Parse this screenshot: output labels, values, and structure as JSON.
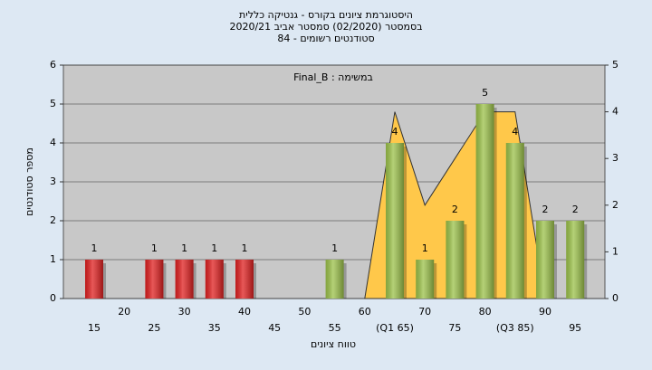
{
  "chart_data": {
    "type": "bar",
    "title": [
      "היסטוגרמת ציונים בקורס - גנטיקה כללית",
      "בסמסטר  (02/2020)  סמסטר אביב 2020/21",
      "סטודנטים רשומים - 84"
    ],
    "annotation": "Final_B : במשימה",
    "y_label": "מספר סטודנטים",
    "x_label": "טווח ציונים",
    "categories": [
      "15",
      "20",
      "25",
      "30",
      "35",
      "40",
      "45",
      "50",
      "55",
      "60",
      "(Q1 65)",
      "70",
      "75",
      "80",
      "(Q3 85)",
      "90",
      "95"
    ],
    "values": [
      1,
      null,
      1,
      1,
      1,
      1,
      null,
      null,
      1,
      null,
      4,
      1,
      2,
      5,
      4,
      2,
      2
    ],
    "colors": [
      "#e02020",
      null,
      "#e02020",
      "#e02020",
      "#e02020",
      "#e02020",
      null,
      null,
      "#9cc24a",
      null,
      "#9cc24a",
      "#9cc24a",
      "#9cc24a",
      "#9cc24a",
      "#9cc24a",
      "#9cc24a",
      "#9cc24a"
    ],
    "series": [
      {
        "axis": "y2",
        "color": "#ffc84a",
        "values": [
          null,
          null,
          null,
          null,
          null,
          null,
          null,
          null,
          null,
          0,
          4,
          2,
          3,
          4,
          4,
          0,
          null
        ]
      }
    ],
    "ylim": [
      0,
      6
    ],
    "yticks": [
      0,
      1,
      2,
      3,
      4,
      5,
      6
    ],
    "y2lim": [
      0,
      5
    ],
    "y2ticks": [
      0,
      1,
      2,
      3,
      4,
      5
    ],
    "grid": true
  }
}
